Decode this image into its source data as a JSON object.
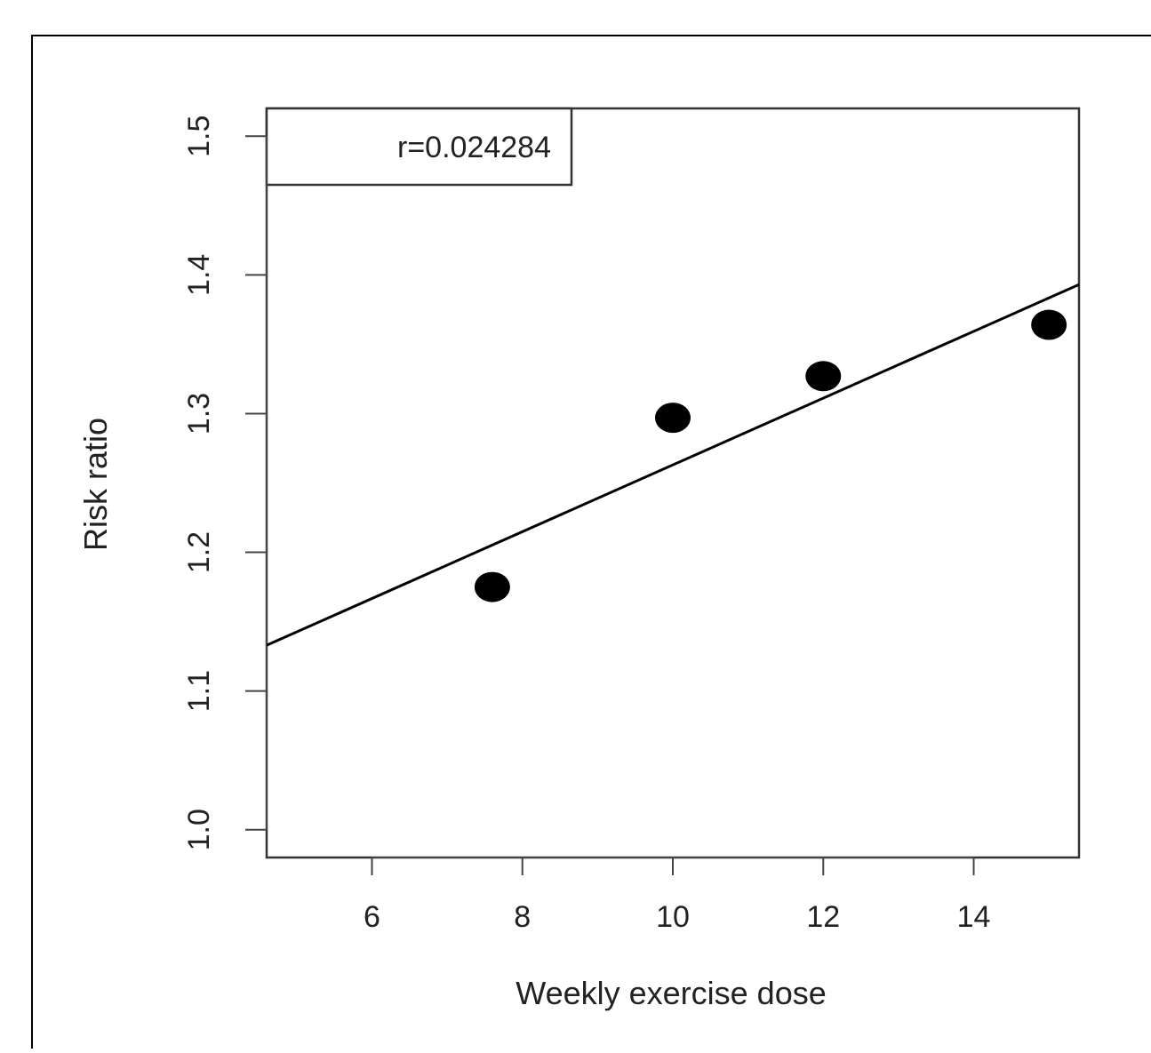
{
  "chart_data": {
    "type": "scatter",
    "title": "",
    "xlabel": "Weekly exercise dose",
    "ylabel": "Risk ratio",
    "xlim": [
      4.6,
      15.4
    ],
    "ylim": [
      0.98,
      1.52
    ],
    "x_ticks": [
      6,
      8,
      10,
      12,
      14
    ],
    "x_tick_labels": [
      "6",
      "8",
      "10",
      "12",
      "14"
    ],
    "y_ticks": [
      1.0,
      1.1,
      1.2,
      1.3,
      1.4,
      1.5
    ],
    "y_tick_labels": [
      "1.0",
      "1.1",
      "1.2",
      "1.3",
      "1.4",
      "1.5"
    ],
    "series": [
      {
        "x": [
          7.6,
          10.0,
          12.0,
          15.0
        ],
        "y": [
          1.175,
          1.297,
          1.327,
          1.364
        ]
      }
    ],
    "trend_line": {
      "x": [
        4.6,
        15.4
      ],
      "y": [
        1.133,
        1.393
      ]
    },
    "annotation": "r=0.024284",
    "legend_position": "top-left",
    "grid": false,
    "colors": {
      "points": "#000000",
      "line": "#000000",
      "axis": "#444444",
      "frame": "#000000"
    }
  }
}
